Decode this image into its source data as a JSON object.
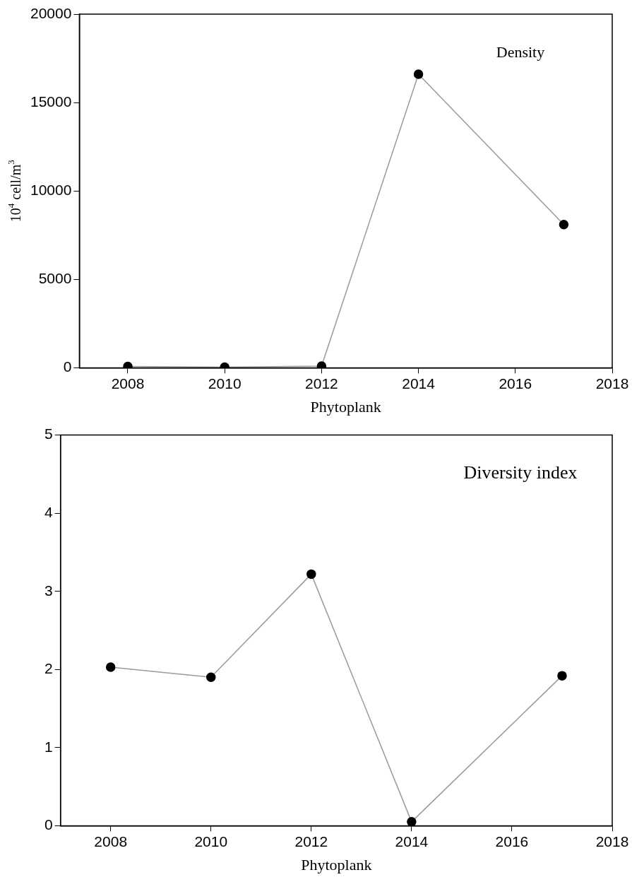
{
  "chart_data": [
    {
      "type": "line",
      "xlabel": "Phytoplank",
      "ylabel": "10$^{4}$ cell/m$^{3}$",
      "annotations": [
        "Density"
      ],
      "x": [
        2008,
        2010,
        2012,
        2014,
        2017
      ],
      "series": [
        {
          "color": "#000000",
          "values": [
            80,
            40,
            100,
            16600,
            8100
          ]
        }
      ],
      "xlim": [
        2007,
        2018
      ],
      "xticks": [
        2008,
        2010,
        2012,
        2014,
        2016,
        2018
      ],
      "ylim": [
        0,
        20000
      ],
      "yticks": [
        0,
        5000,
        10000,
        15000,
        20000
      ],
      "grid": false,
      "legend": false,
      "marker": "circle",
      "line_style": "solid"
    },
    {
      "type": "line",
      "xlabel": "Phytoplank",
      "annotations": [
        "Diversity index"
      ],
      "x": [
        2008,
        2010,
        2012,
        2014,
        2017
      ],
      "series": [
        {
          "color": "#000000",
          "values": [
            2.03,
            1.9,
            3.22,
            0.05,
            1.92
          ]
        }
      ],
      "xlim": [
        2007,
        2018
      ],
      "xticks": [
        2008,
        2010,
        2012,
        2014,
        2016,
        2018
      ],
      "ylim": [
        0,
        5
      ],
      "yticks": [
        0,
        1,
        2,
        3,
        4,
        5
      ],
      "grid": false,
      "legend": false,
      "marker": "circle",
      "line_style": "solid"
    }
  ]
}
